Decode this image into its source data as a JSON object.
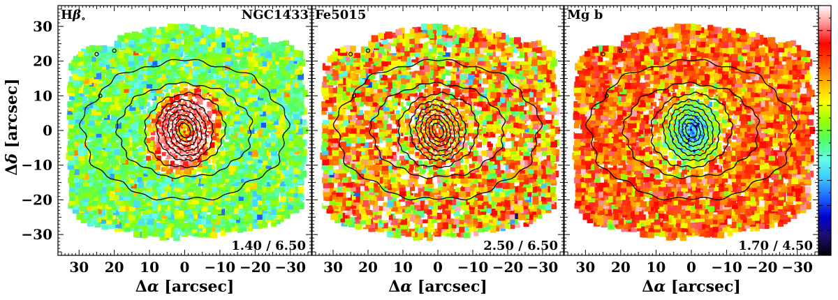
{
  "chart_data": {
    "type": "heatmap",
    "y_axis": {
      "label_delta": "Δ",
      "label_symbol": "δ",
      "label_unit": "[arcsec]",
      "range": [
        -36,
        36
      ],
      "major_ticks": [
        -30,
        -20,
        -10,
        0,
        10,
        20,
        30
      ],
      "tick_labels": [
        "−30",
        "−20",
        "−10",
        "0",
        "10",
        "20",
        "30"
      ]
    },
    "x_axis": {
      "label_delta": "Δ",
      "label_symbol": "α",
      "label_unit": "[arcsec]",
      "range": [
        36,
        -36
      ],
      "major_ticks": [
        30,
        20,
        10,
        0,
        -10,
        -20,
        -30
      ],
      "tick_labels": [
        "30",
        "20",
        "10",
        "0",
        "−10",
        "−20",
        "−30"
      ]
    },
    "panels": [
      {
        "index_name": "Hβ",
        "index_base": "H",
        "index_sub": "β",
        "index_suffix": "∘",
        "galaxy": "NGC1433",
        "range_text": "1.40 / 6.50",
        "min": 1.4,
        "max": 6.5,
        "profile": "central-high",
        "bg_level": 0.48,
        "center_level": 0.93,
        "noise": 0.09
      },
      {
        "index_name": "Fe5015",
        "index_base": "Fe5015",
        "index_sub": "",
        "index_suffix": "",
        "galaxy": "",
        "range_text": "2.50 / 6.50",
        "min": 2.5,
        "max": 6.5,
        "profile": "central-mid",
        "bg_level": 0.7,
        "center_level": 0.8,
        "noise": 0.17
      },
      {
        "index_name": "Mg b",
        "index_base": "Mg b",
        "index_sub": "",
        "index_suffix": "",
        "galaxy": "",
        "range_text": "1.70 / 4.50",
        "min": 1.7,
        "max": 4.5,
        "profile": "central-low",
        "bg_level": 0.77,
        "center_level": 0.25,
        "noise": 0.1
      }
    ],
    "colorbar": {
      "colors": [
        "#000000",
        "#1e0f6e",
        "#0000d2",
        "#1e64ff",
        "#3cc8ff",
        "#64ffe6",
        "#50ff64",
        "#96ff00",
        "#ffff00",
        "#ffb400",
        "#ff5000",
        "#ff0000",
        "#ff8c8c",
        "#ffffff"
      ]
    },
    "isophotes_arcsec": [
      {
        "a": 29,
        "b": 20
      },
      {
        "a": 19,
        "b": 13.5
      },
      {
        "a": 11.5,
        "b": 10.5
      },
      {
        "a": 7.8,
        "b": 8.8
      },
      {
        "a": 6.0,
        "b": 7.4
      },
      {
        "a": 4.6,
        "b": 6.0
      },
      {
        "a": 3.4,
        "b": 4.6
      },
      {
        "a": 2.4,
        "b": 3.4
      },
      {
        "a": 1.5,
        "b": 2.2
      }
    ]
  }
}
